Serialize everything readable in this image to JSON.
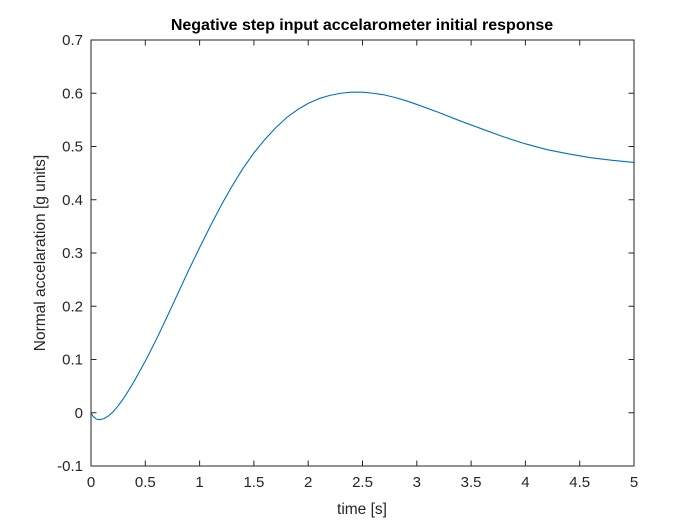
{
  "chart_data": {
    "type": "line",
    "title": "Negative step input accelarometer initial response",
    "xlabel": "time [s]",
    "ylabel": "Normal accelaration [g units]",
    "xlim": [
      0,
      5
    ],
    "ylim": [
      -0.1,
      0.7
    ],
    "xticks": [
      "0",
      "0.5",
      "1",
      "1.5",
      "2",
      "2.5",
      "3",
      "3.5",
      "4",
      "4.5",
      "5"
    ],
    "yticks": [
      "-0.1",
      "0",
      "0.1",
      "0.2",
      "0.3",
      "0.4",
      "0.5",
      "0.6",
      "0.7"
    ],
    "grid": false,
    "box": true,
    "series": [
      {
        "color": "#0072BD",
        "x": [
          0,
          0.02,
          0.05,
          0.08,
          0.12,
          0.16,
          0.2,
          0.25,
          0.3,
          0.35,
          0.4,
          0.5,
          0.6,
          0.7,
          0.8,
          0.9,
          1.0,
          1.1,
          1.2,
          1.3,
          1.4,
          1.5,
          1.6,
          1.7,
          1.8,
          1.9,
          2.0,
          2.1,
          2.2,
          2.3,
          2.4,
          2.5,
          2.6,
          2.7,
          2.8,
          2.9,
          3.0,
          3.2,
          3.4,
          3.6,
          3.8,
          4.0,
          4.2,
          4.4,
          4.6,
          4.8,
          5.0
        ],
        "y": [
          0,
          -0.007,
          -0.012,
          -0.013,
          -0.011,
          -0.006,
          0.001,
          0.013,
          0.027,
          0.043,
          0.06,
          0.097,
          0.137,
          0.18,
          0.224,
          0.268,
          0.31,
          0.351,
          0.39,
          0.426,
          0.459,
          0.488,
          0.513,
          0.535,
          0.554,
          0.569,
          0.581,
          0.59,
          0.596,
          0.6,
          0.602,
          0.602,
          0.6,
          0.597,
          0.592,
          0.586,
          0.579,
          0.564,
          0.548,
          0.533,
          0.518,
          0.505,
          0.494,
          0.486,
          0.479,
          0.474,
          0.47
        ]
      }
    ]
  }
}
